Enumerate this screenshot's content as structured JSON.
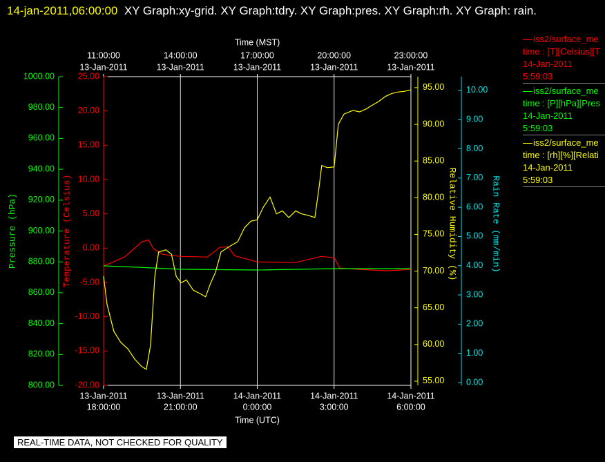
{
  "chart_data": {
    "type": "line",
    "title_time": "14-jan-2011,06:00:00",
    "title": "XY Graph:xy-grid.  XY Graph:tdry.  XY Graph:pres.  XY Graph:rh.  XY Graph: rain.",
    "xlabel": "Time (UTC)",
    "x2label": "Time (MST)",
    "xlim": [
      "2011-01-13T18:00:00",
      "2011-01-14T06:00:00"
    ],
    "xticks": [
      {
        "value": "2011-01-13T18:00:00",
        "label": [
          "13-Jan-2011",
          "18:00:00"
        ]
      },
      {
        "value": "2011-01-13T21:00:00",
        "label": [
          "13-Jan-2011",
          "21:00:00"
        ]
      },
      {
        "value": "2011-01-14T00:00:00",
        "label": [
          "14-Jan-2011",
          "0:00:00"
        ]
      },
      {
        "value": "2011-01-14T03:00:00",
        "label": [
          "14-Jan-2011",
          "3:00:00"
        ]
      },
      {
        "value": "2011-01-14T06:00:00",
        "label": [
          "14-Jan-2011",
          "6:00:00"
        ]
      }
    ],
    "x2ticks": [
      {
        "value": "2011-01-13T18:00:00",
        "label": [
          "11:00:00",
          "13-Jan-2011"
        ]
      },
      {
        "value": "2011-01-13T21:00:00",
        "label": [
          "14:00:00",
          "13-Jan-2011"
        ]
      },
      {
        "value": "2011-01-14T00:00:00",
        "label": [
          "17:00:00",
          "13-Jan-2011"
        ]
      },
      {
        "value": "2011-01-14T03:00:00",
        "label": [
          "20:00:00",
          "13-Jan-2011"
        ]
      },
      {
        "value": "2011-01-14T06:00:00",
        "label": [
          "23:00:00",
          "13-Jan-2011"
        ]
      }
    ],
    "grid": true,
    "y_axes": [
      {
        "label": "Pressure (hPa)",
        "color": "#00ff00",
        "side": "left",
        "ylim": [
          800,
          1000
        ],
        "yticks": [
          {
            "value": 800,
            "label": "800.00"
          },
          {
            "value": 820,
            "label": "820.00"
          },
          {
            "value": 840,
            "label": "840.00"
          },
          {
            "value": 860,
            "label": "860.00"
          },
          {
            "value": 880,
            "label": "880.00"
          },
          {
            "value": 900,
            "label": "900.00"
          },
          {
            "value": 920,
            "label": "920.00"
          },
          {
            "value": 940,
            "label": "940.00"
          },
          {
            "value": 960,
            "label": "960.00"
          },
          {
            "value": 980,
            "label": "980.00"
          },
          {
            "value": 1000,
            "label": "1000.00"
          }
        ]
      },
      {
        "label": "Temperature (Celsius)",
        "color": "#ff0000",
        "side": "left",
        "ylim": [
          -20,
          25
        ],
        "yticks": [
          {
            "value": -20,
            "label": "-20.00"
          },
          {
            "value": -15,
            "label": "-15.00"
          },
          {
            "value": -10,
            "label": "-10.00"
          },
          {
            "value": -5,
            "label": "-5.00"
          },
          {
            "value": 0,
            "label": "0.00"
          },
          {
            "value": 5,
            "label": "5.00"
          },
          {
            "value": 10,
            "label": "10.00"
          },
          {
            "value": 15,
            "label": "15.00"
          },
          {
            "value": 20,
            "label": "20.00"
          },
          {
            "value": 25,
            "label": "25.00"
          }
        ]
      },
      {
        "label": "Relative Humidity (%)",
        "color": "#ffff00",
        "side": "right",
        "ylim": [
          54.43,
          96.5
        ],
        "yticks": [
          {
            "value": 55,
            "label": "55.00"
          },
          {
            "value": 60,
            "label": "60.00"
          },
          {
            "value": 65,
            "label": "65.00"
          },
          {
            "value": 70,
            "label": "70.00"
          },
          {
            "value": 75,
            "label": "75.00"
          },
          {
            "value": 80,
            "label": "80.00"
          },
          {
            "value": 85,
            "label": "85.00"
          },
          {
            "value": 90,
            "label": "90.00"
          },
          {
            "value": 95,
            "label": "95.00"
          }
        ]
      },
      {
        "label": "Rain Rate (mm/min)",
        "color": "#00e5e5",
        "side": "right",
        "ylim": [
          -0.095,
          10.47
        ],
        "yticks": [
          {
            "value": 0,
            "label": "0.00"
          },
          {
            "value": 1,
            "label": "1.00"
          },
          {
            "value": 2,
            "label": "2.00"
          },
          {
            "value": 3,
            "label": "3.00"
          },
          {
            "value": 4,
            "label": "4.00"
          },
          {
            "value": 5,
            "label": "5.00"
          },
          {
            "value": 6,
            "label": "6.00"
          },
          {
            "value": 7,
            "label": "7.00"
          },
          {
            "value": 8,
            "label": "8.00"
          },
          {
            "value": 9,
            "label": "9.00"
          },
          {
            "value": 10,
            "label": "10.00"
          }
        ]
      }
    ],
    "series": [
      {
        "name": "iss2/surface_me",
        "legend_text": [
          "time : [T][Celsius][T",
          "14-Jan-2011",
          "5:59:03"
        ],
        "color": "#ff0000",
        "axis": 1,
        "x": [
          "2011-01-13T18:00:00",
          "2011-01-13T18:49:00",
          "2011-01-13T19:29:00",
          "2011-01-13T19:45:00",
          "2011-01-13T19:57:00",
          "2011-01-13T20:18:00",
          "2011-01-13T21:00:00",
          "2011-01-13T22:03:00",
          "2011-01-13T22:32:00",
          "2011-01-13T22:51:00",
          "2011-01-13T23:07:00",
          "2011-01-14T00:00:00",
          "2011-01-14T01:30:00",
          "2011-01-14T02:30:00",
          "2011-01-14T03:00:00",
          "2011-01-14T03:13:00",
          "2011-01-14T03:59:00",
          "2011-01-14T05:03:00",
          "2011-01-14T06:00:00"
        ],
        "values": [
          -2.6,
          -1.3,
          0.9,
          1.2,
          -0.1,
          -0.9,
          -1.2,
          -1.3,
          0.1,
          0.2,
          -1.1,
          -2.0,
          -2.1,
          -1.2,
          -1.4,
          -2.9,
          -3.1,
          -3.3,
          -3.1
        ]
      },
      {
        "name": "iss2/surface_me",
        "legend_text": [
          "time : [P][hPa][Pres",
          "14-Jan-2011",
          "5:59:03"
        ],
        "color": "#00ff00",
        "axis": 0,
        "x": [
          "2011-01-13T18:00:00",
          "2011-01-13T19:21:00",
          "2011-01-13T21:00:00",
          "2011-01-14T00:00:00",
          "2011-01-14T03:00:00",
          "2011-01-14T06:00:00"
        ],
        "values": [
          877.4,
          876.5,
          875.2,
          874.7,
          875.6,
          875.6
        ]
      },
      {
        "name": "iss2/surface_me",
        "legend_text": [
          "time : [rh][%][Relati",
          "14-Jan-2011",
          "5:59:03"
        ],
        "color": "#ffff00",
        "axis": 2,
        "x": [
          "2011-01-13T18:00:00",
          "2011-01-13T18:08:00",
          "2011-01-13T18:24:00",
          "2011-01-13T18:40:00",
          "2011-01-13T18:57:00",
          "2011-01-13T19:13:00",
          "2011-01-13T19:29:00",
          "2011-01-13T19:40:00",
          "2011-01-13T19:50:00",
          "2011-01-13T20:00:00",
          "2011-01-13T20:09:00",
          "2011-01-13T20:26:00",
          "2011-01-13T20:39:00",
          "2011-01-13T20:50:00",
          "2011-01-13T21:01:00",
          "2011-01-13T21:14:00",
          "2011-01-13T21:30:00",
          "2011-01-13T21:47:00",
          "2011-01-13T21:59:00",
          "2011-01-13T22:11:00",
          "2011-01-13T22:22:00",
          "2011-01-13T22:35:00",
          "2011-01-13T22:48:00",
          "2011-01-13T22:59:00",
          "2011-01-13T23:14:00",
          "2011-01-13T23:30:00",
          "2011-01-13T23:45:00",
          "2011-01-14T00:00:00",
          "2011-01-14T00:14:00",
          "2011-01-14T00:30:00",
          "2011-01-14T00:45:00",
          "2011-01-14T00:59:00",
          "2011-01-14T01:14:00",
          "2011-01-14T01:30:00",
          "2011-01-14T01:44:00",
          "2011-01-14T01:59:00",
          "2011-01-14T02:15:00",
          "2011-01-14T02:25:00",
          "2011-01-14T02:31:00",
          "2011-01-14T02:44:00",
          "2011-01-14T03:00:00",
          "2011-01-14T03:10:00",
          "2011-01-14T03:23:00",
          "2011-01-14T03:44:00",
          "2011-01-14T04:00:00",
          "2011-01-14T04:15:00",
          "2011-01-14T04:29:00",
          "2011-01-14T04:44:00",
          "2011-01-14T05:00:00",
          "2011-01-14T05:15:00",
          "2011-01-14T05:29:00",
          "2011-01-14T05:44:00",
          "2011-01-14T06:00:00"
        ],
        "values": [
          69.3,
          65.5,
          61.8,
          60.3,
          59.4,
          58.0,
          57.0,
          56.6,
          59.9,
          69.3,
          72.6,
          72.9,
          72.3,
          69.3,
          68.4,
          68.8,
          67.4,
          66.9,
          66.5,
          68.4,
          69.8,
          72.6,
          73.1,
          73.5,
          74.0,
          75.9,
          76.8,
          77.0,
          78.7,
          80.1,
          77.8,
          78.2,
          77.3,
          78.2,
          77.8,
          77.6,
          77.3,
          81.5,
          84.4,
          84.1,
          84.2,
          90.0,
          91.4,
          91.9,
          91.7,
          92.1,
          92.6,
          93.1,
          93.8,
          94.2,
          94.4,
          94.5,
          94.7
        ]
      }
    ],
    "note": "REAL-TIME DATA, NOT CHECKED FOR QUALITY"
  }
}
